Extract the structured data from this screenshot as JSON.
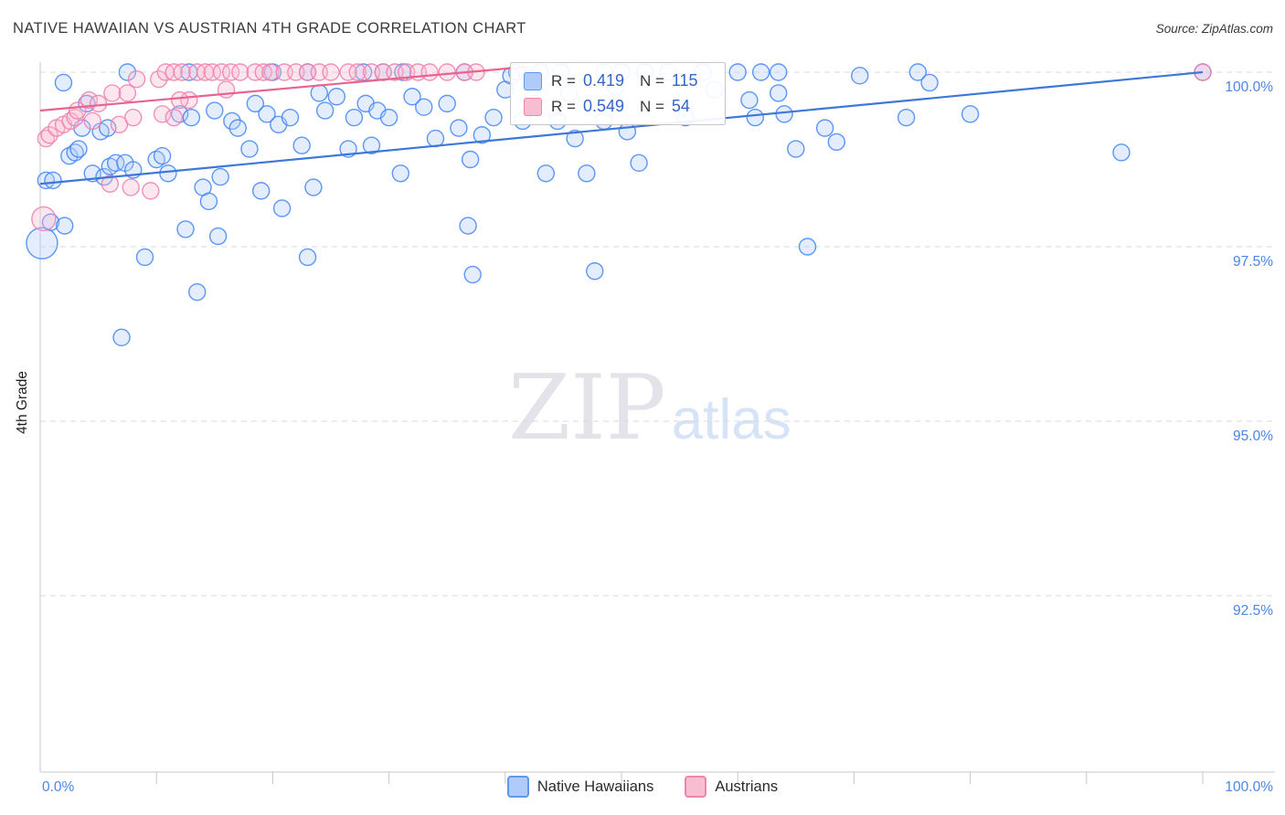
{
  "title": "NATIVE HAWAIIAN VS AUSTRIAN 4TH GRADE CORRELATION CHART",
  "source": "Source: ZipAtlas.com",
  "watermark": {
    "zip": "ZIP",
    "atlas": "atlas"
  },
  "y_axis": {
    "title": "4th Grade",
    "tick_labels": [
      "100.0%",
      "97.5%",
      "95.0%",
      "92.5%"
    ],
    "tick_values": [
      100.0,
      97.5,
      95.0,
      92.5
    ]
  },
  "x_axis": {
    "left_label": "0.0%",
    "right_label": "100.0%"
  },
  "stats_box": {
    "r_label": "R =",
    "n_label": "N =",
    "series1": {
      "r": "0.419",
      "n": "115"
    },
    "series2": {
      "r": "0.549",
      "n": "54"
    }
  },
  "legend": {
    "series1": "Native Hawaiians",
    "series2": "Austrians"
  },
  "colors": {
    "grid": "#d8dadd",
    "axis": "#c5c9cc",
    "blue_stroke": "#4285f4",
    "blue_fill": "#aecbfa",
    "pink_stroke": "#ef7fab",
    "pink_fill": "#f8bbd0",
    "trend_blue": "#3d78d8",
    "trend_pink": "#e8638f",
    "tick_label_blue": "#4a86e8"
  },
  "chart_data": {
    "type": "scatter",
    "title": "NATIVE HAWAIIAN VS AUSTRIAN 4TH GRADE CORRELATION CHART",
    "xlabel": "",
    "ylabel": "4th Grade",
    "xlim": [
      0,
      100
    ],
    "ylim": [
      90,
      100.4
    ],
    "x_unit": "%",
    "y_unit": "%",
    "grid": true,
    "legend_position": "bottom",
    "series": [
      {
        "name": "Native Hawaiians",
        "r": 0.419,
        "n": 115,
        "stroke": "#4285f4",
        "fill": "#aecbfa",
        "points": [
          [
            0.15,
            97.55,
            17
          ],
          [
            0.5,
            98.45
          ],
          [
            1.1,
            98.45
          ],
          [
            0.9,
            97.85
          ],
          [
            2.1,
            97.8
          ],
          [
            2.0,
            99.85
          ],
          [
            2.5,
            98.8
          ],
          [
            3.0,
            98.85
          ],
          [
            3.6,
            99.2
          ],
          [
            3.3,
            98.9
          ],
          [
            4.0,
            99.55
          ],
          [
            4.5,
            98.55
          ],
          [
            5.2,
            99.15
          ],
          [
            5.5,
            98.5
          ],
          [
            6.0,
            98.65
          ],
          [
            6.5,
            98.7
          ],
          [
            7.0,
            96.2
          ],
          [
            7.3,
            98.7
          ],
          [
            8.0,
            98.6
          ],
          [
            5.8,
            99.2
          ],
          [
            9.0,
            97.35
          ],
          [
            10.0,
            98.75
          ],
          [
            7.5,
            100
          ],
          [
            12.8,
            100
          ],
          [
            20.0,
            100
          ],
          [
            23.0,
            100
          ],
          [
            27.8,
            100
          ],
          [
            29.5,
            100
          ],
          [
            31.2,
            100
          ],
          [
            36.5,
            100
          ],
          [
            41.0,
            100
          ],
          [
            43.0,
            100
          ],
          [
            44.8,
            100
          ],
          [
            48.5,
            100
          ],
          [
            50.0,
            100
          ],
          [
            52.0,
            100
          ],
          [
            54.0,
            100
          ],
          [
            57.0,
            100
          ],
          [
            60.0,
            100
          ],
          [
            62.0,
            100
          ],
          [
            63.5,
            100
          ],
          [
            75.5,
            100
          ],
          [
            100.0,
            100
          ],
          [
            10.5,
            98.8
          ],
          [
            11.0,
            98.55
          ],
          [
            12.0,
            99.4
          ],
          [
            13.0,
            99.35
          ],
          [
            12.5,
            97.75
          ],
          [
            14.0,
            98.35
          ],
          [
            14.5,
            98.15
          ],
          [
            15.0,
            99.45
          ],
          [
            15.5,
            98.5
          ],
          [
            16.5,
            99.3
          ],
          [
            17.0,
            99.2
          ],
          [
            18.0,
            98.9
          ],
          [
            18.5,
            99.55
          ],
          [
            19.5,
            99.4
          ],
          [
            20.5,
            99.25
          ],
          [
            21.5,
            99.35
          ],
          [
            22.5,
            98.95
          ],
          [
            23.5,
            98.35
          ],
          [
            24.0,
            99.7
          ],
          [
            24.5,
            99.45
          ],
          [
            25.5,
            99.65
          ],
          [
            26.5,
            98.9
          ],
          [
            27.0,
            99.35
          ],
          [
            28.0,
            99.55
          ],
          [
            28.5,
            98.95
          ],
          [
            29.0,
            99.45
          ],
          [
            30.0,
            99.35
          ],
          [
            31.0,
            98.55
          ],
          [
            32.0,
            99.65
          ],
          [
            33.0,
            99.5
          ],
          [
            34.0,
            99.05
          ],
          [
            35.0,
            99.55
          ],
          [
            23.0,
            97.35
          ],
          [
            20.8,
            98.05
          ],
          [
            13.5,
            96.85
          ],
          [
            15.3,
            97.65
          ],
          [
            19.0,
            98.3
          ],
          [
            36.0,
            99.2
          ],
          [
            37.0,
            98.75
          ],
          [
            38.0,
            99.1
          ],
          [
            39.0,
            99.35
          ],
          [
            40.0,
            99.75
          ],
          [
            41.5,
            99.3
          ],
          [
            42.5,
            99.55
          ],
          [
            43.5,
            98.55
          ],
          [
            44.5,
            99.3
          ],
          [
            45.5,
            99.7
          ],
          [
            46.0,
            99.05
          ],
          [
            47.0,
            98.55
          ],
          [
            37.2,
            97.1
          ],
          [
            47.7,
            97.15
          ],
          [
            36.8,
            97.8
          ],
          [
            48.5,
            99.3
          ],
          [
            49.5,
            99.8
          ],
          [
            50.5,
            99.15
          ],
          [
            51.5,
            98.7
          ],
          [
            40.5,
            99.95
          ],
          [
            55.5,
            99.35
          ],
          [
            58.0,
            99.75
          ],
          [
            61.0,
            99.6
          ],
          [
            61.5,
            99.35
          ],
          [
            63.5,
            99.7
          ],
          [
            64.0,
            99.4
          ],
          [
            65.0,
            98.9
          ],
          [
            66.0,
            97.5
          ],
          [
            67.5,
            99.2
          ],
          [
            68.5,
            99.0
          ],
          [
            70.5,
            99.95
          ],
          [
            74.5,
            99.35
          ],
          [
            76.5,
            99.85
          ],
          [
            80.0,
            99.4
          ],
          [
            93.0,
            98.85
          ]
        ]
      },
      {
        "name": "Austrians",
        "r": 0.549,
        "n": 54,
        "stroke": "#ef7fab",
        "fill": "#f8bbd0",
        "points": [
          [
            0.3,
            97.9,
            13
          ],
          [
            0.5,
            99.05
          ],
          [
            0.8,
            99.1
          ],
          [
            1.4,
            99.2
          ],
          [
            2.0,
            99.25
          ],
          [
            2.6,
            99.3
          ],
          [
            3.0,
            99.35
          ],
          [
            3.2,
            99.45
          ],
          [
            4.2,
            99.6
          ],
          [
            4.5,
            99.3
          ],
          [
            5.0,
            99.55
          ],
          [
            6.0,
            98.4
          ],
          [
            6.2,
            99.7
          ],
          [
            6.8,
            99.25
          ],
          [
            7.5,
            99.7
          ],
          [
            7.8,
            98.35
          ],
          [
            8.0,
            99.35
          ],
          [
            8.3,
            99.9
          ],
          [
            9.5,
            98.3
          ],
          [
            10.2,
            99.9
          ],
          [
            10.5,
            99.4
          ],
          [
            11.5,
            99.35
          ],
          [
            12.8,
            99.6
          ],
          [
            10.8,
            100
          ],
          [
            11.5,
            100
          ],
          [
            12.2,
            100
          ],
          [
            13.5,
            100
          ],
          [
            14.2,
            100
          ],
          [
            14.8,
            100
          ],
          [
            15.6,
            100
          ],
          [
            16.4,
            100
          ],
          [
            17.2,
            100
          ],
          [
            18.5,
            100
          ],
          [
            19.2,
            100
          ],
          [
            19.8,
            100
          ],
          [
            21.0,
            100
          ],
          [
            22.0,
            100
          ],
          [
            23.0,
            100
          ],
          [
            24.0,
            100
          ],
          [
            25.0,
            100
          ],
          [
            26.5,
            100
          ],
          [
            27.3,
            100
          ],
          [
            28.5,
            100
          ],
          [
            29.5,
            100
          ],
          [
            30.5,
            100
          ],
          [
            31.5,
            100
          ],
          [
            32.5,
            100
          ],
          [
            33.5,
            100
          ],
          [
            35.0,
            100
          ],
          [
            36.5,
            100
          ],
          [
            37.5,
            100
          ],
          [
            12.0,
            99.6
          ],
          [
            16.0,
            99.75
          ],
          [
            100.0,
            100
          ]
        ]
      }
    ],
    "trend_lines": [
      {
        "series": "Native Hawaiians",
        "color": "#3d78d8",
        "x1": 0,
        "y1": 98.4,
        "x2": 100,
        "y2": 100.0
      },
      {
        "series": "Austrians",
        "color": "#e8638f",
        "x1": 0,
        "y1": 99.45,
        "x2": 42,
        "y2": 100.08
      }
    ]
  }
}
